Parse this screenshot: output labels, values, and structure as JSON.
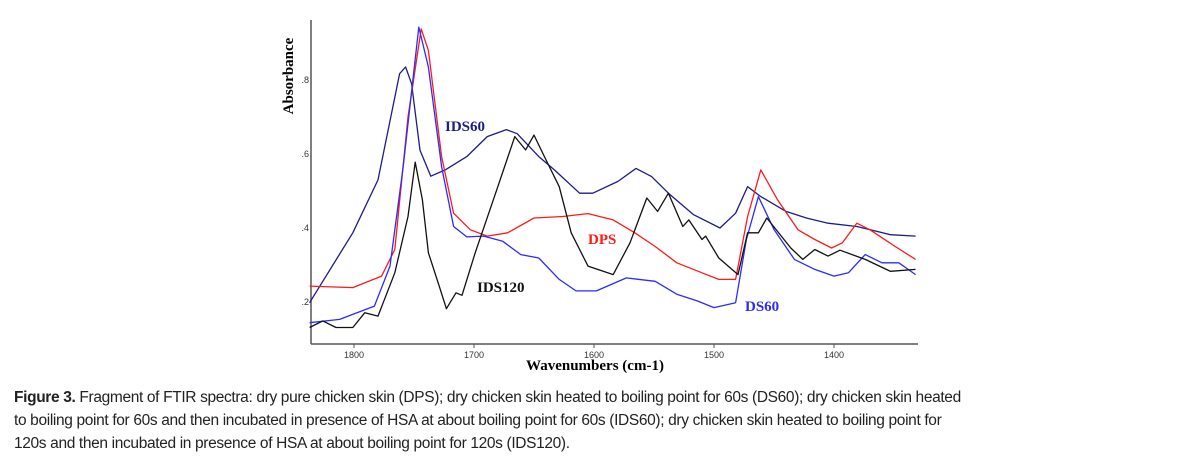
{
  "chart_data": {
    "type": "line",
    "xlabel": "Wavenumbers (cm-1)",
    "ylabel": "Absorbance",
    "xlim": [
      1836,
      1330
    ],
    "x_reversed": true,
    "ylim": [
      0.11,
      0.95
    ],
    "xticks": [
      1800,
      1700,
      1600,
      1500,
      1400
    ],
    "yticks": [
      0.2,
      0.4,
      0.6,
      0.8
    ],
    "ytick_labels": [
      ".2",
      ".4",
      ".6",
      ".8"
    ],
    "grid": false,
    "legend": "inline labels",
    "series": [
      {
        "name": "IDS60",
        "color": "#1c1c8a",
        "points": [
          [
            1837,
            0.198
          ],
          [
            1801,
            0.387
          ],
          [
            1780,
            0.53
          ],
          [
            1762,
            0.817
          ],
          [
            1757,
            0.835
          ],
          [
            1752,
            0.79
          ],
          [
            1745,
            0.61
          ],
          [
            1736,
            0.54
          ],
          [
            1724,
            0.557
          ],
          [
            1706,
            0.593
          ],
          [
            1689,
            0.647
          ],
          [
            1673,
            0.666
          ],
          [
            1664,
            0.655
          ],
          [
            1646,
            0.593
          ],
          [
            1633,
            0.557
          ],
          [
            1612,
            0.494
          ],
          [
            1601,
            0.494
          ],
          [
            1580,
            0.526
          ],
          [
            1565,
            0.561
          ],
          [
            1552,
            0.539
          ],
          [
            1538,
            0.494
          ],
          [
            1517,
            0.436
          ],
          [
            1495,
            0.4
          ],
          [
            1482,
            0.44
          ],
          [
            1472,
            0.512
          ],
          [
            1461,
            0.485
          ],
          [
            1440,
            0.445
          ],
          [
            1423,
            0.427
          ],
          [
            1405,
            0.413
          ],
          [
            1381,
            0.404
          ],
          [
            1353,
            0.382
          ],
          [
            1332,
            0.378
          ]
        ]
      },
      {
        "name": "DPS",
        "color": "#ff1a1a",
        "points": [
          [
            1837,
            0.243
          ],
          [
            1801,
            0.239
          ],
          [
            1777,
            0.27
          ],
          [
            1766,
            0.342
          ],
          [
            1755,
            0.7
          ],
          [
            1744,
            0.938
          ],
          [
            1738,
            0.88
          ],
          [
            1727,
            0.593
          ],
          [
            1717,
            0.44
          ],
          [
            1703,
            0.395
          ],
          [
            1689,
            0.378
          ],
          [
            1672,
            0.387
          ],
          [
            1650,
            0.427
          ],
          [
            1626,
            0.431
          ],
          [
            1605,
            0.439
          ],
          [
            1584,
            0.422
          ],
          [
            1566,
            0.387
          ],
          [
            1549,
            0.35
          ],
          [
            1531,
            0.306
          ],
          [
            1510,
            0.279
          ],
          [
            1496,
            0.261
          ],
          [
            1482,
            0.261
          ],
          [
            1472,
            0.431
          ],
          [
            1461,
            0.557
          ],
          [
            1447,
            0.476
          ],
          [
            1430,
            0.395
          ],
          [
            1416,
            0.369
          ],
          [
            1402,
            0.346
          ],
          [
            1393,
            0.36
          ],
          [
            1381,
            0.413
          ],
          [
            1370,
            0.395
          ],
          [
            1349,
            0.35
          ],
          [
            1332,
            0.315
          ]
        ]
      },
      {
        "name": "DS60",
        "color": "#2b2bff",
        "points": [
          [
            1837,
            0.144
          ],
          [
            1812,
            0.153
          ],
          [
            1783,
            0.189
          ],
          [
            1770,
            0.297
          ],
          [
            1759,
            0.566
          ],
          [
            1746,
            0.943
          ],
          [
            1738,
            0.835
          ],
          [
            1727,
            0.566
          ],
          [
            1717,
            0.404
          ],
          [
            1706,
            0.376
          ],
          [
            1692,
            0.378
          ],
          [
            1676,
            0.364
          ],
          [
            1661,
            0.328
          ],
          [
            1646,
            0.319
          ],
          [
            1629,
            0.261
          ],
          [
            1615,
            0.23
          ],
          [
            1598,
            0.23
          ],
          [
            1573,
            0.265
          ],
          [
            1549,
            0.256
          ],
          [
            1531,
            0.221
          ],
          [
            1514,
            0.203
          ],
          [
            1500,
            0.185
          ],
          [
            1482,
            0.198
          ],
          [
            1473,
            0.369
          ],
          [
            1463,
            0.485
          ],
          [
            1450,
            0.396
          ],
          [
            1433,
            0.315
          ],
          [
            1416,
            0.288
          ],
          [
            1400,
            0.27
          ],
          [
            1388,
            0.279
          ],
          [
            1374,
            0.328
          ],
          [
            1360,
            0.306
          ],
          [
            1346,
            0.306
          ],
          [
            1332,
            0.274
          ]
        ]
      },
      {
        "name": "IDS120",
        "color": "#111111",
        "points": [
          [
            1837,
            0.131
          ],
          [
            1826,
            0.149
          ],
          [
            1815,
            0.131
          ],
          [
            1801,
            0.131
          ],
          [
            1791,
            0.171
          ],
          [
            1780,
            0.162
          ],
          [
            1766,
            0.279
          ],
          [
            1755,
            0.431
          ],
          [
            1749,
            0.578
          ],
          [
            1743,
            0.476
          ],
          [
            1738,
            0.333
          ],
          [
            1729,
            0.243
          ],
          [
            1723,
            0.182
          ],
          [
            1715,
            0.225
          ],
          [
            1710,
            0.218
          ],
          [
            1699,
            0.333
          ],
          [
            1682,
            0.494
          ],
          [
            1666,
            0.647
          ],
          [
            1657,
            0.611
          ],
          [
            1650,
            0.651
          ],
          [
            1640,
            0.584
          ],
          [
            1629,
            0.512
          ],
          [
            1619,
            0.387
          ],
          [
            1605,
            0.297
          ],
          [
            1584,
            0.274
          ],
          [
            1570,
            0.36
          ],
          [
            1556,
            0.481
          ],
          [
            1547,
            0.445
          ],
          [
            1538,
            0.494
          ],
          [
            1526,
            0.404
          ],
          [
            1521,
            0.422
          ],
          [
            1510,
            0.369
          ],
          [
            1507,
            0.378
          ],
          [
            1496,
            0.319
          ],
          [
            1480,
            0.274
          ],
          [
            1472,
            0.387
          ],
          [
            1463,
            0.387
          ],
          [
            1456,
            0.427
          ],
          [
            1436,
            0.346
          ],
          [
            1426,
            0.315
          ],
          [
            1416,
            0.342
          ],
          [
            1405,
            0.324
          ],
          [
            1395,
            0.34
          ],
          [
            1374,
            0.315
          ],
          [
            1353,
            0.283
          ],
          [
            1332,
            0.288
          ]
        ]
      }
    ]
  },
  "caption": {
    "label": "Figure 3.",
    "line1": " Fragment of FTIR spectra: dry pure chicken skin (DPS); dry chicken skin heated to boiling point for 60s (DS60); dry chicken skin heated",
    "line2": "to boiling point for 60s and then incubated in presence of HSA at about boiling point for 60s (IDS60); dry chicken skin heated to boiling point for",
    "line3": "120s and then incubated in presence of HSA at about boiling point for 120s (IDS120)."
  }
}
